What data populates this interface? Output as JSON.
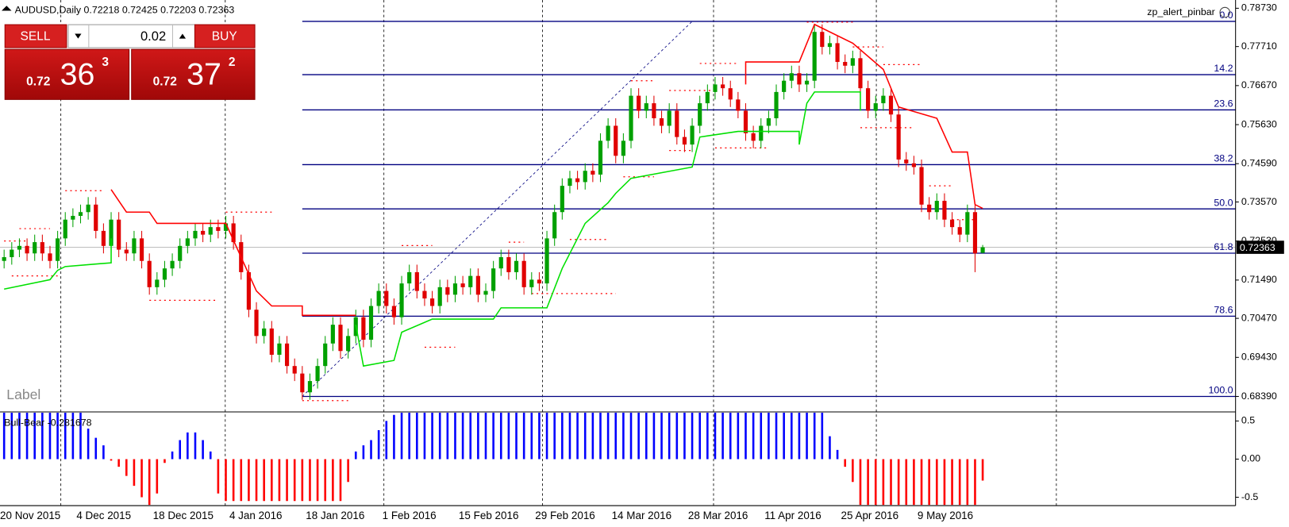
{
  "trade_panel": {
    "sell": "SELL",
    "buy": "BUY",
    "lot": "0.02",
    "bid": {
      "prefix": "0.72",
      "big": "36",
      "small": "3"
    },
    "ask": {
      "prefix": "0.72",
      "big": "37",
      "small": "2"
    }
  },
  "chart_data": [
    {
      "type": "candlestick",
      "symbol": "AUDUSD,Daily",
      "annotations": [
        "zp_alert_pinbar",
        "Label"
      ],
      "up_color": "#00a000",
      "down_color": "#e00000",
      "categories": [
        "20 Nov 2015",
        null,
        null,
        null,
        null,
        null,
        null,
        null,
        null,
        null,
        "4 Dec 2015",
        null,
        null,
        null,
        null,
        null,
        null,
        null,
        null,
        null,
        "18 Dec 2015",
        null,
        null,
        null,
        null,
        null,
        null,
        null,
        null,
        null,
        "4 Jan 2016",
        null,
        null,
        null,
        null,
        null,
        null,
        null,
        null,
        null,
        "18 Jan 2016",
        null,
        null,
        null,
        null,
        null,
        null,
        null,
        null,
        null,
        "1 Feb 2016",
        null,
        null,
        null,
        null,
        null,
        null,
        null,
        null,
        null,
        "15 Feb 2016",
        null,
        null,
        null,
        null,
        null,
        null,
        null,
        null,
        null,
        "29 Feb 2016",
        null,
        null,
        null,
        null,
        null,
        null,
        null,
        null,
        null,
        "14 Mar 2016",
        null,
        null,
        null,
        null,
        null,
        null,
        null,
        null,
        null,
        "28 Mar 2016",
        null,
        null,
        null,
        null,
        null,
        null,
        null,
        null,
        null,
        "11 Apr 2016",
        null,
        null,
        null,
        null,
        null,
        null,
        null,
        null,
        null,
        "25 Apr 2016",
        null,
        null,
        null,
        null,
        null,
        null,
        null,
        null,
        null,
        "9 May 2016",
        null,
        null,
        null,
        null,
        null,
        null,
        null,
        null
      ],
      "open": [
        0.72,
        0.721,
        0.723,
        0.724,
        0.722,
        0.725,
        0.722,
        0.72,
        0.726,
        0.731,
        0.732,
        0.733,
        0.735,
        0.728,
        0.724,
        0.731,
        0.723,
        0.722,
        0.726,
        0.72,
        0.713,
        0.715,
        0.718,
        0.72,
        0.724,
        0.726,
        0.728,
        0.727,
        0.729,
        0.728,
        0.73,
        0.725,
        0.717,
        0.707,
        0.7,
        0.702,
        0.695,
        0.698,
        0.692,
        0.69,
        0.685,
        0.688,
        0.692,
        0.698,
        0.703,
        0.696,
        0.7,
        0.705,
        0.699,
        0.708,
        0.712,
        0.708,
        0.705,
        0.714,
        0.717,
        0.712,
        0.71,
        0.708,
        0.713,
        0.711,
        0.714,
        0.713,
        0.716,
        0.711,
        0.712,
        0.718,
        0.721,
        0.717,
        0.72,
        0.713,
        0.715,
        0.714,
        0.726,
        0.733,
        0.74,
        0.742,
        0.741,
        0.744,
        0.743,
        0.752,
        0.756,
        0.748,
        0.752,
        0.764,
        0.76,
        0.762,
        0.758,
        0.756,
        0.76,
        0.753,
        0.751,
        0.756,
        0.762,
        0.765,
        0.767,
        0.766,
        0.763,
        0.76,
        0.754,
        0.752,
        0.756,
        0.758,
        0.765,
        0.768,
        0.77,
        0.767,
        0.768,
        0.781,
        0.777,
        0.778,
        0.773,
        0.772,
        0.774,
        0.766,
        0.76,
        0.762,
        0.764,
        0.759,
        0.747,
        0.746,
        0.745,
        0.735,
        0.733,
        0.736,
        0.731,
        0.729,
        0.727,
        0.733,
        0.72218
      ],
      "high": [
        0.723,
        0.725,
        0.726,
        0.726,
        0.727,
        0.727,
        0.724,
        0.728,
        0.733,
        0.734,
        0.735,
        0.737,
        0.737,
        0.73,
        0.733,
        0.733,
        0.725,
        0.728,
        0.728,
        0.722,
        0.717,
        0.72,
        0.722,
        0.726,
        0.728,
        0.73,
        0.73,
        0.731,
        0.731,
        0.732,
        0.732,
        0.727,
        0.719,
        0.709,
        0.704,
        0.704,
        0.7,
        0.7,
        0.694,
        0.692,
        0.69,
        0.694,
        0.7,
        0.705,
        0.705,
        0.702,
        0.707,
        0.707,
        0.71,
        0.714,
        0.714,
        0.71,
        0.716,
        0.719,
        0.719,
        0.714,
        0.712,
        0.715,
        0.715,
        0.716,
        0.716,
        0.718,
        0.718,
        0.714,
        0.72,
        0.723,
        0.723,
        0.722,
        0.722,
        0.717,
        0.717,
        0.728,
        0.735,
        0.742,
        0.744,
        0.744,
        0.746,
        0.746,
        0.754,
        0.758,
        0.758,
        0.754,
        0.766,
        0.766,
        0.764,
        0.764,
        0.76,
        0.762,
        0.762,
        0.755,
        0.758,
        0.764,
        0.767,
        0.769,
        0.769,
        0.768,
        0.765,
        0.762,
        0.756,
        0.758,
        0.76,
        0.767,
        0.77,
        0.772,
        0.772,
        0.77,
        0.783,
        0.783,
        0.78,
        0.78,
        0.775,
        0.776,
        0.776,
        0.768,
        0.764,
        0.766,
        0.766,
        0.761,
        0.749,
        0.748,
        0.747,
        0.737,
        0.738,
        0.738,
        0.733,
        0.731,
        0.735,
        0.735,
        0.72425
      ],
      "low": [
        0.718,
        0.719,
        0.721,
        0.72,
        0.72,
        0.72,
        0.718,
        0.718,
        0.724,
        0.729,
        0.73,
        0.731,
        0.726,
        0.722,
        0.722,
        0.721,
        0.72,
        0.72,
        0.718,
        0.711,
        0.711,
        0.713,
        0.716,
        0.718,
        0.722,
        0.724,
        0.725,
        0.725,
        0.726,
        0.726,
        0.723,
        0.715,
        0.705,
        0.698,
        0.698,
        0.693,
        0.693,
        0.69,
        0.688,
        0.683,
        0.683,
        0.686,
        0.69,
        0.696,
        0.694,
        0.694,
        0.698,
        0.697,
        0.697,
        0.706,
        0.706,
        0.703,
        0.703,
        0.712,
        0.71,
        0.708,
        0.706,
        0.706,
        0.709,
        0.709,
        0.711,
        0.711,
        0.709,
        0.709,
        0.71,
        0.716,
        0.715,
        0.715,
        0.711,
        0.711,
        0.712,
        0.712,
        0.724,
        0.731,
        0.738,
        0.739,
        0.739,
        0.741,
        0.741,
        0.75,
        0.746,
        0.746,
        0.75,
        0.758,
        0.758,
        0.756,
        0.754,
        0.754,
        0.751,
        0.749,
        0.749,
        0.754,
        0.76,
        0.763,
        0.764,
        0.761,
        0.758,
        0.752,
        0.75,
        0.75,
        0.754,
        0.756,
        0.763,
        0.766,
        0.765,
        0.765,
        0.766,
        0.775,
        0.775,
        0.771,
        0.77,
        0.77,
        0.764,
        0.758,
        0.758,
        0.76,
        0.757,
        0.745,
        0.744,
        0.743,
        0.733,
        0.731,
        0.731,
        0.729,
        0.727,
        0.725,
        0.725,
        0.717,
        0.72203
      ],
      "close": [
        0.721,
        0.723,
        0.724,
        0.722,
        0.725,
        0.722,
        0.72,
        0.726,
        0.731,
        0.732,
        0.733,
        0.735,
        0.728,
        0.724,
        0.731,
        0.723,
        0.722,
        0.726,
        0.72,
        0.713,
        0.715,
        0.718,
        0.72,
        0.724,
        0.726,
        0.728,
        0.727,
        0.729,
        0.728,
        0.73,
        0.725,
        0.717,
        0.707,
        0.7,
        0.702,
        0.695,
        0.698,
        0.692,
        0.69,
        0.685,
        0.688,
        0.692,
        0.698,
        0.703,
        0.696,
        0.7,
        0.705,
        0.699,
        0.708,
        0.712,
        0.708,
        0.705,
        0.714,
        0.717,
        0.712,
        0.71,
        0.708,
        0.713,
        0.711,
        0.714,
        0.713,
        0.716,
        0.711,
        0.712,
        0.718,
        0.721,
        0.717,
        0.72,
        0.713,
        0.715,
        0.714,
        0.726,
        0.733,
        0.74,
        0.742,
        0.741,
        0.744,
        0.743,
        0.752,
        0.756,
        0.748,
        0.752,
        0.764,
        0.76,
        0.762,
        0.758,
        0.756,
        0.76,
        0.753,
        0.751,
        0.756,
        0.762,
        0.765,
        0.767,
        0.766,
        0.763,
        0.76,
        0.754,
        0.752,
        0.756,
        0.758,
        0.765,
        0.768,
        0.77,
        0.767,
        0.768,
        0.781,
        0.777,
        0.778,
        0.773,
        0.772,
        0.774,
        0.766,
        0.76,
        0.762,
        0.764,
        0.759,
        0.747,
        0.746,
        0.745,
        0.735,
        0.733,
        0.736,
        0.731,
        0.729,
        0.727,
        0.733,
        0.722,
        0.72363
      ],
      "ylim": [
        0.68,
        0.7895
      ],
      "yticks": [
        {
          "value": 0.7873,
          "label": "0.78730"
        },
        {
          "value": 0.7771,
          "label": "0.77710"
        },
        {
          "value": 0.7667,
          "label": "0.76670"
        },
        {
          "value": 0.7563,
          "label": "0.75630"
        },
        {
          "value": 0.7459,
          "label": "0.74590"
        },
        {
          "value": 0.7357,
          "label": "0.73570"
        },
        {
          "value": 0.7253,
          "label": "0.72530"
        },
        {
          "value": 0.7149,
          "label": "0.71490"
        },
        {
          "value": 0.7047,
          "label": "0.70470"
        },
        {
          "value": 0.6943,
          "label": "0.69430"
        },
        {
          "value": 0.6839,
          "label": "0.68390"
        }
      ],
      "fibonacci": {
        "high": 0.7838,
        "low": 0.6839,
        "start": 39,
        "end": 90,
        "color": "#000080",
        "levels": [
          {
            "value": 0,
            "label": "0.0"
          },
          14.2,
          23.6,
          38.2,
          {
            "value": 50,
            "label": "50.0"
          },
          61.8,
          78.6,
          {
            "value": 100,
            "label": "100.0"
          }
        ]
      },
      "lines": [
        {
          "color": "#ff0000",
          "x": [
            14,
            16,
            19,
            20,
            29,
            31,
            33,
            35,
            39,
            39,
            46,
            null,
            97,
            97,
            104,
            106,
            111,
            115,
            117,
            122,
            124,
            126,
            127,
            128
          ],
          "values": [
            0.739,
            0.733,
            0.733,
            0.73,
            0.73,
            0.721,
            0.712,
            0.708,
            0.708,
            0.7055,
            0.7055,
            null,
            0.767,
            0.773,
            0.773,
            0.783,
            0.778,
            0.771,
            0.761,
            0.758,
            0.749,
            0.749,
            0.735,
            0.734
          ]
        },
        {
          "color": "#00e000",
          "x": [
            0,
            6,
            7,
            8,
            14,
            14,
            null,
            46,
            47,
            51,
            52,
            56,
            64,
            65,
            71,
            73,
            76,
            79,
            80,
            82,
            90,
            91,
            96,
            104,
            104,
            105,
            106,
            112,
            112
          ],
          "values": [
            0.7125,
            0.715,
            0.7175,
            0.7185,
            0.7195,
            0.726,
            null,
            0.703,
            0.692,
            0.6935,
            0.701,
            0.7045,
            0.7045,
            0.7075,
            0.7075,
            0.718,
            0.73,
            0.7355,
            0.738,
            0.742,
            0.745,
            0.753,
            0.7545,
            0.7545,
            0.751,
            0.762,
            0.765,
            0.765,
            0.76
          ]
        }
      ],
      "levels_color": "#ff0000",
      "levels": [
        {
          "x": [
            0,
            3
          ],
          "value": 0.7253
        },
        {
          "x": [
            2,
            6
          ],
          "value": 0.7286
        },
        {
          "x": [
            1,
            7
          ],
          "value": 0.716
        },
        {
          "x": [
            8,
            13
          ],
          "value": 0.7387
        },
        {
          "x": [
            19,
            28
          ],
          "value": 0.7095
        },
        {
          "x": [
            29,
            35
          ],
          "value": 0.733
        },
        {
          "x": [
            39,
            45
          ],
          "value": 0.6828
        },
        {
          "x": [
            52,
            56
          ],
          "value": 0.7241
        },
        {
          "x": [
            55,
            59
          ],
          "value": 0.697
        },
        {
          "x": [
            66,
            68
          ],
          "value": 0.725
        },
        {
          "x": [
            69,
            80
          ],
          "value": 0.7113
        },
        {
          "x": [
            74,
            79
          ],
          "value": 0.7257
        },
        {
          "x": [
            81,
            85
          ],
          "value": 0.7424
        },
        {
          "x": [
            82,
            85
          ],
          "value": 0.768
        },
        {
          "x": [
            87,
            90
          ],
          "value": 0.7494
        },
        {
          "x": [
            87,
            93
          ],
          "value": 0.7654
        },
        {
          "x": [
            91,
            96
          ],
          "value": 0.7726
        },
        {
          "x": [
            93,
            100
          ],
          "value": 0.7501
        },
        {
          "x": [
            105,
            111
          ],
          "value": 0.7836
        },
        {
          "x": [
            111,
            115
          ],
          "value": 0.777
        },
        {
          "x": [
            112,
            119
          ],
          "value": 0.7555
        },
        {
          "x": [
            115,
            120
          ],
          "value": 0.7723
        },
        {
          "x": [
            121,
            124
          ],
          "value": 0.74
        },
        {
          "x": [
            124,
            127
          ],
          "value": 0.731
        }
      ]
    },
    {
      "type": "bar",
      "title": "Bull-Bear",
      "pos_color": "#0000ff",
      "neg_color": "#ff0000",
      "values": [
        0.65,
        0.65,
        0.65,
        0.65,
        0.65,
        0.65,
        0.65,
        0.65,
        0.65,
        0.65,
        0.65,
        0.4,
        0.28,
        0.18,
        -0.02,
        -0.1,
        -0.22,
        -0.35,
        -0.5,
        -0.6,
        -0.45,
        -0.05,
        0.1,
        0.25,
        0.35,
        0.35,
        0.25,
        0.1,
        -0.45,
        -0.55,
        -0.55,
        -0.55,
        -0.55,
        -0.55,
        -0.55,
        -0.55,
        -0.55,
        -0.55,
        -0.55,
        -0.55,
        -0.55,
        -0.55,
        -0.55,
        -0.55,
        -0.55,
        -0.3,
        0.1,
        0.18,
        0.25,
        0.38,
        0.5,
        0.58,
        0.65,
        0.65,
        0.65,
        0.65,
        0.65,
        0.65,
        0.65,
        0.65,
        0.65,
        0.65,
        0.65,
        0.65,
        0.65,
        0.65,
        0.65,
        0.65,
        0.65,
        0.65,
        0.65,
        0.65,
        0.65,
        0.65,
        0.65,
        0.65,
        0.65,
        0.65,
        0.65,
        0.65,
        0.65,
        0.65,
        0.65,
        0.65,
        0.65,
        0.65,
        0.65,
        0.65,
        0.65,
        0.65,
        0.65,
        0.65,
        0.65,
        0.65,
        0.65,
        0.65,
        0.65,
        0.65,
        0.65,
        0.65,
        0.65,
        0.65,
        0.65,
        0.65,
        0.65,
        0.65,
        0.65,
        0.65,
        0.3,
        0.12,
        -0.1,
        -0.3,
        -0.6,
        -0.6,
        -0.6,
        -0.6,
        -0.6,
        -0.6,
        -0.6,
        -0.6,
        -0.6,
        -0.6,
        -0.6,
        -0.6,
        -0.6,
        -0.6,
        -0.6,
        -0.6,
        -0.281678
      ],
      "ylim": [
        -0.61,
        0.63
      ],
      "yticks": [
        0.5,
        {
          "value": 0,
          "label": "0.00"
        },
        -0.5
      ]
    }
  ]
}
